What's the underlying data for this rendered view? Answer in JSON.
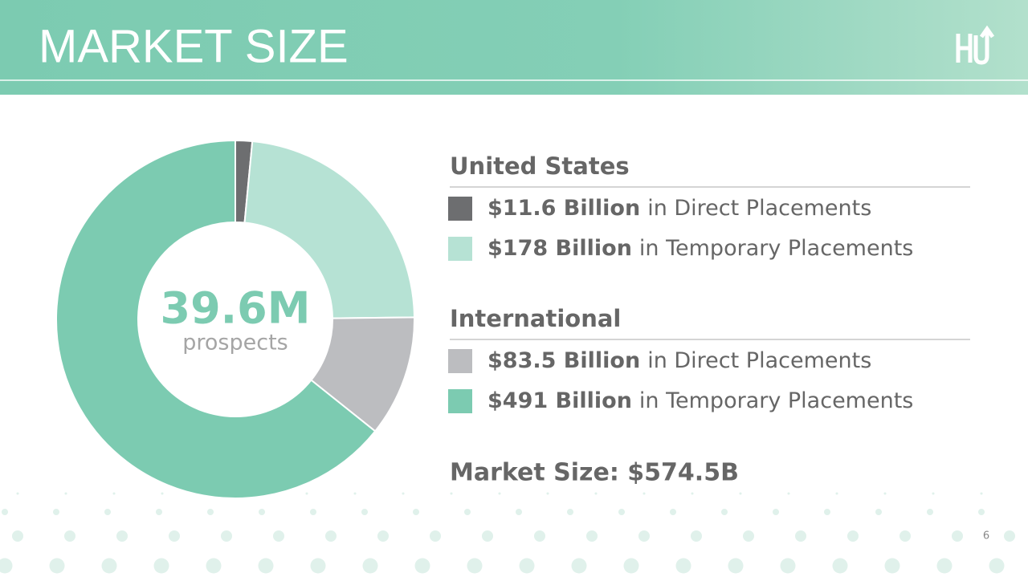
{
  "header": {
    "title": "MARKET SIZE"
  },
  "chart_data": {
    "type": "pie",
    "donut": true,
    "center_text": "39.6M",
    "center_subtext": "prospects",
    "groups": [
      {
        "name": "United States",
        "categories": [
          "in Direct Placements",
          "in Temporary Placements"
        ],
        "values": [
          11.6,
          178
        ],
        "value_labels": [
          "$11.6 Billion",
          "$178 Billion"
        ],
        "colors": [
          "#6d6e70",
          "#b6e2d4"
        ]
      },
      {
        "name": "International",
        "categories": [
          "in Direct Placements",
          "in Temporary Placements"
        ],
        "values": [
          83.5,
          491
        ],
        "value_labels": [
          "$83.5 Billion",
          "$491 Billion"
        ],
        "colors": [
          "#bcbdc0",
          "#7ccbb1"
        ]
      }
    ],
    "total_label": "Market Size: $574.5B"
  },
  "footer": {
    "page_number": "6"
  }
}
